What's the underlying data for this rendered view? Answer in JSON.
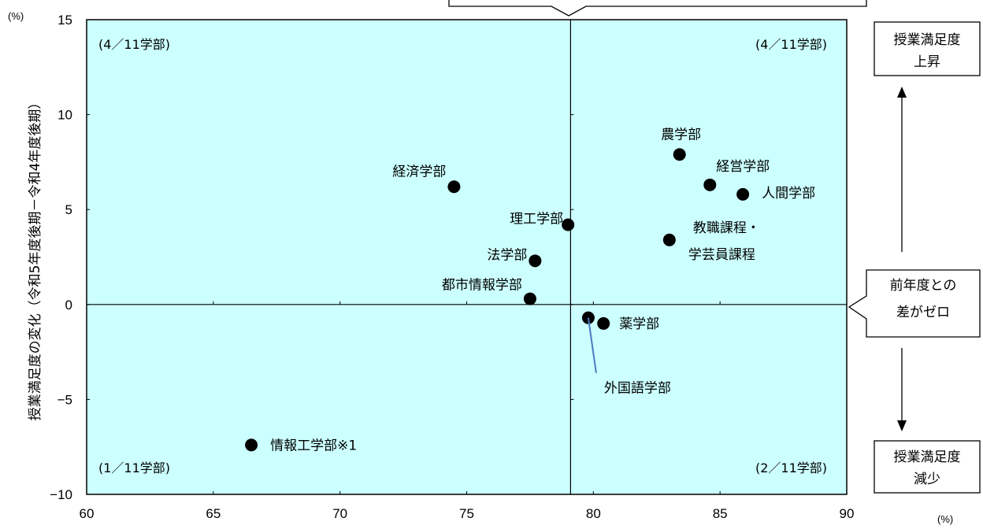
{
  "chart_data": {
    "type": "scatter",
    "xlim": [
      60,
      90
    ],
    "ylim": [
      -10,
      15
    ],
    "x_ticks": [
      "60",
      "65",
      "70",
      "75",
      "80",
      "85",
      "90"
    ],
    "y_ticks": [
      "15",
      "10",
      "5",
      "0",
      "−5",
      "−10"
    ],
    "x_unit": "(%)",
    "y_unit": "(%)",
    "ylabel": "授業満足度の変化（令和5年度後期－令和4年度後期）",
    "x_divider": 79.1,
    "y_divider": 0,
    "background": "#ccffff",
    "marker_color": "#000000",
    "points": [
      {
        "label": "経済学部",
        "x": 74.5,
        "y": 6.2
      },
      {
        "label": "理工学部",
        "x": 79.0,
        "y": 4.2
      },
      {
        "label": "法学部",
        "x": 77.7,
        "y": 2.3
      },
      {
        "label": "都市情報学部",
        "x": 77.5,
        "y": 0.3
      },
      {
        "label": "情報工学部※1",
        "x": 66.5,
        "y": -7.4
      },
      {
        "label": "農学部",
        "x": 83.4,
        "y": 7.9
      },
      {
        "label": "経営学部",
        "x": 84.6,
        "y": 6.3
      },
      {
        "label": "人間学部",
        "x": 85.9,
        "y": 5.8
      },
      {
        "label": "教職課程・学芸員課程",
        "x": 83.0,
        "y": 3.4
      },
      {
        "label": "外国語学部",
        "x": 79.8,
        "y": -0.7
      },
      {
        "label": "薬学部",
        "x": 80.4,
        "y": -1.0
      }
    ],
    "quadrant_labels": {
      "top_left": "(4／11学部)",
      "top_right": "(4／11学部)",
      "bottom_left": "(1／11学部)",
      "bottom_right": "(2／11学部)"
    }
  },
  "side_boxes": {
    "up": [
      "授業満足度",
      "上昇"
    ],
    "zero": [
      "前年度との",
      "差がゼロ"
    ],
    "down": [
      "授業満足度",
      "減少"
    ]
  }
}
